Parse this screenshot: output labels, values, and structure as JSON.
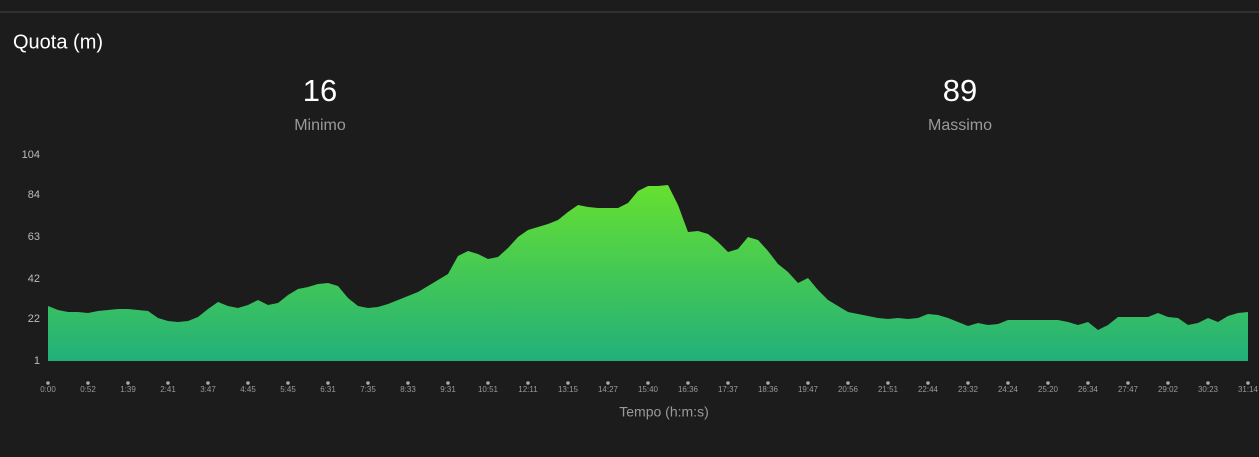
{
  "stats": [
    {
      "value": 16,
      "label": "Minimo"
    },
    {
      "value": 89,
      "label": "Massimo"
    }
  ],
  "chart_data": {
    "type": "area",
    "title": "Quota (m)",
    "x_label": "Tempo (h:m:s)",
    "gradient": [
      "#66e030",
      "#22b07a"
    ],
    "ylim": [
      1,
      104
    ],
    "yticks": [
      1,
      22,
      42,
      63,
      84,
      104
    ],
    "categories": [
      "0:00",
      null,
      null,
      null,
      "0:52",
      null,
      null,
      null,
      "1:39",
      null,
      null,
      null,
      "2:41",
      null,
      null,
      null,
      "3:47",
      null,
      null,
      null,
      "4:45",
      null,
      null,
      null,
      "5:45",
      null,
      null,
      null,
      "6:31",
      null,
      null,
      null,
      "7:35",
      null,
      null,
      null,
      "8:33",
      null,
      null,
      null,
      "9:31",
      null,
      null,
      null,
      "10:51",
      null,
      null,
      null,
      "12:11",
      null,
      null,
      null,
      "13:15",
      null,
      null,
      null,
      "14:27",
      null,
      null,
      null,
      "15:40",
      null,
      null,
      null,
      "16:36",
      null,
      null,
      null,
      "17:37",
      null,
      null,
      null,
      "18:36",
      null,
      null,
      null,
      "19:47",
      null,
      null,
      null,
      "20:56",
      null,
      null,
      null,
      "21:51",
      null,
      null,
      null,
      "22:44",
      null,
      null,
      null,
      "23:32",
      null,
      null,
      null,
      "24:24",
      null,
      null,
      null,
      "25:20",
      null,
      null,
      null,
      "26:34",
      null,
      null,
      null,
      "27:47",
      null,
      null,
      null,
      "29:02",
      null,
      null,
      null,
      "30:23",
      null,
      null,
      null,
      "31:14"
    ],
    "values": [
      28.5,
      26.5,
      25.5,
      25.5,
      25,
      26,
      26.5,
      27,
      27,
      26.5,
      26,
      22.5,
      21,
      20.5,
      21,
      23,
      27,
      30.5,
      28.5,
      27.5,
      29,
      31.5,
      29,
      30,
      34,
      37,
      38,
      39.5,
      40,
      38.5,
      32.5,
      28.5,
      27.5,
      28,
      29.5,
      31.5,
      33.5,
      35.5,
      38.5,
      41.5,
      44.5,
      53.5,
      56,
      54.5,
      52,
      53,
      57.5,
      63,
      66.5,
      68,
      69.5,
      71.5,
      75.5,
      79,
      78,
      77.5,
      77.5,
      77.5,
      80,
      86,
      88.5,
      88.5,
      89,
      79,
      65.5,
      66,
      64.5,
      60.5,
      55.5,
      57,
      63,
      61.5,
      56,
      49.5,
      45.5,
      40,
      42.5,
      36.5,
      31.5,
      28.5,
      25.5,
      24.5,
      23.5,
      22.5,
      22,
      22.5,
      22,
      22.5,
      24.5,
      24,
      22.5,
      20.5,
      18.5,
      20,
      19,
      19.5,
      21.5,
      21.5,
      21.5,
      21.5,
      21.5,
      21.5,
      20.5,
      19,
      20.5,
      16.5,
      19,
      23,
      23,
      23,
      23,
      25,
      23,
      22.5,
      19,
      20,
      22.5,
      20.5,
      23.5,
      25,
      25.5
    ]
  }
}
